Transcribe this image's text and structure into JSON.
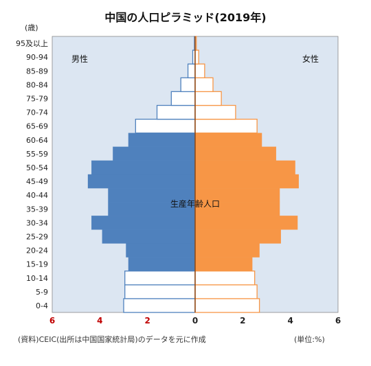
{
  "chart_data": {
    "type": "bar",
    "orientation": "horizontal",
    "title": "中国の人口ピラミッド(2019年)",
    "y_unit_label": "(歳)",
    "x_unit_label": "(単位:%)",
    "source": "(資料)CEIC(出所は中国国家統計局)のデータを元に作成",
    "male_label": "男性",
    "female_label": "女性",
    "annotation": "生産年齢人口",
    "categories": [
      "0-4",
      "5-9",
      "10-14",
      "15-19",
      "20-24",
      "25-29",
      "30-34",
      "35-39",
      "40-44",
      "45-49",
      "50-54",
      "55-59",
      "60-64",
      "65-69",
      "70-74",
      "75-79",
      "80-84",
      "85-89",
      "90-94",
      "95及以上"
    ],
    "series": [
      {
        "name": "男性",
        "values": [
          3.0,
          2.95,
          2.95,
          2.8,
          2.9,
          3.9,
          4.35,
          3.65,
          3.65,
          4.5,
          4.35,
          3.45,
          2.8,
          2.5,
          1.6,
          1.0,
          0.6,
          0.3,
          0.1,
          0.03
        ]
      },
      {
        "name": "女性",
        "values": [
          2.7,
          2.6,
          2.5,
          2.4,
          2.7,
          3.6,
          4.3,
          3.55,
          3.55,
          4.35,
          4.2,
          3.4,
          2.8,
          2.6,
          1.7,
          1.1,
          0.75,
          0.4,
          0.15,
          0.05
        ]
      }
    ],
    "working_age_range": [
      "15-19",
      "60-64"
    ],
    "x_ticks": [
      "6",
      "4",
      "2",
      "0",
      "2",
      "4",
      "6"
    ],
    "xlim": [
      -6,
      6
    ],
    "colors": {
      "male": "#4f81bd",
      "female": "#f79646",
      "background": "#dce6f2",
      "center_line": "#8b4513"
    },
    "grid": false,
    "legend": "inside-top"
  }
}
